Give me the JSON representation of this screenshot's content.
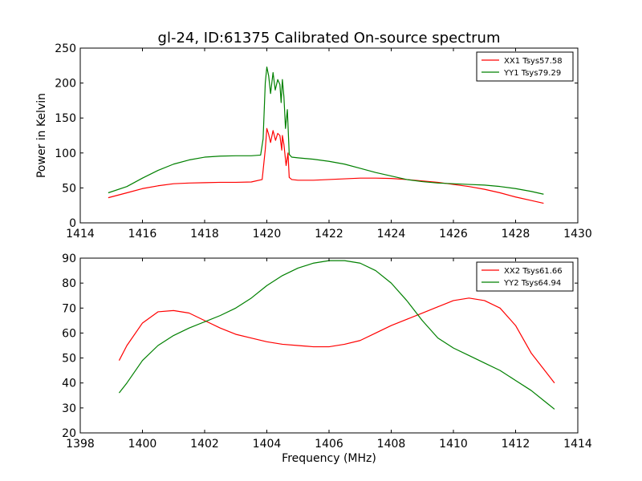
{
  "title": "gl-24, ID:61375 Calibrated On-source spectrum",
  "chart_data": [
    {
      "type": "line",
      "ylabel": "Power in Kelvin",
      "xlabel": "",
      "xlim": [
        1414,
        1430
      ],
      "ylim": [
        0,
        250
      ],
      "xticks": [
        "1414",
        "1416",
        "1418",
        "1420",
        "1422",
        "1424",
        "1426",
        "1428",
        "1430"
      ],
      "yticks": [
        "0",
        "50",
        "100",
        "150",
        "200",
        "250"
      ],
      "legend_position": "top-right",
      "series": [
        {
          "name": "XX1 Tsys57.58",
          "color": "#ff0000",
          "points": [
            [
              1414.9,
              36
            ],
            [
              1415.5,
              43
            ],
            [
              1416.0,
              49
            ],
            [
              1416.5,
              53
            ],
            [
              1417.0,
              56
            ],
            [
              1417.5,
              57
            ],
            [
              1418.0,
              57.5
            ],
            [
              1418.5,
              58
            ],
            [
              1419.0,
              58
            ],
            [
              1419.5,
              58.5
            ],
            [
              1419.85,
              62
            ],
            [
              1419.95,
              105
            ],
            [
              1420.0,
              135
            ],
            [
              1420.05,
              128
            ],
            [
              1420.12,
              115
            ],
            [
              1420.2,
              132
            ],
            [
              1420.28,
              118
            ],
            [
              1420.35,
              128
            ],
            [
              1420.42,
              125
            ],
            [
              1420.48,
              104
            ],
            [
              1420.5,
              125
            ],
            [
              1420.55,
              112
            ],
            [
              1420.62,
              82
            ],
            [
              1420.68,
              100
            ],
            [
              1420.72,
              65
            ],
            [
              1420.8,
              62
            ],
            [
              1421.0,
              61
            ],
            [
              1421.5,
              61
            ],
            [
              1422.0,
              62
            ],
            [
              1422.5,
              63
            ],
            [
              1423.0,
              64
            ],
            [
              1423.5,
              64
            ],
            [
              1424.0,
              63.5
            ],
            [
              1424.5,
              62
            ],
            [
              1425.0,
              60
            ],
            [
              1425.5,
              58
            ],
            [
              1426.0,
              55
            ],
            [
              1426.5,
              52
            ],
            [
              1427.0,
              48
            ],
            [
              1427.5,
              43
            ],
            [
              1428.0,
              37
            ],
            [
              1428.5,
              32
            ],
            [
              1428.9,
              28
            ]
          ]
        },
        {
          "name": "YY1 Tsys79.29",
          "color": "#008000",
          "points": [
            [
              1414.9,
              43
            ],
            [
              1415.5,
              52
            ],
            [
              1416.0,
              64
            ],
            [
              1416.5,
              75
            ],
            [
              1417.0,
              84
            ],
            [
              1417.5,
              90
            ],
            [
              1418.0,
              94
            ],
            [
              1418.5,
              95.5
            ],
            [
              1419.0,
              96
            ],
            [
              1419.5,
              96
            ],
            [
              1419.8,
              97
            ],
            [
              1419.88,
              120
            ],
            [
              1419.95,
              200
            ],
            [
              1420.0,
              223
            ],
            [
              1420.06,
              210
            ],
            [
              1420.12,
              185
            ],
            [
              1420.2,
              215
            ],
            [
              1420.27,
              190
            ],
            [
              1420.35,
              205
            ],
            [
              1420.42,
              198
            ],
            [
              1420.46,
              172
            ],
            [
              1420.5,
              205
            ],
            [
              1420.55,
              180
            ],
            [
              1420.6,
              135
            ],
            [
              1420.66,
              162
            ],
            [
              1420.72,
              98
            ],
            [
              1420.8,
              94
            ],
            [
              1421.0,
              93
            ],
            [
              1421.5,
              91
            ],
            [
              1422.0,
              88
            ],
            [
              1422.5,
              84
            ],
            [
              1423.0,
              78
            ],
            [
              1423.5,
              72
            ],
            [
              1424.0,
              67
            ],
            [
              1424.5,
              62
            ],
            [
              1425.0,
              59
            ],
            [
              1425.5,
              57
            ],
            [
              1426.0,
              56
            ],
            [
              1426.5,
              55
            ],
            [
              1427.0,
              54
            ],
            [
              1427.5,
              52
            ],
            [
              1428.0,
              49
            ],
            [
              1428.5,
              45
            ],
            [
              1428.9,
              41
            ]
          ]
        }
      ]
    },
    {
      "type": "line",
      "ylabel": "",
      "xlabel": "Frequency (MHz)",
      "xlim": [
        1398,
        1414
      ],
      "ylim": [
        20,
        90
      ],
      "xticks": [
        "1398",
        "1400",
        "1402",
        "1404",
        "1406",
        "1408",
        "1410",
        "1412",
        "1414"
      ],
      "yticks": [
        "20",
        "30",
        "40",
        "50",
        "60",
        "70",
        "80",
        "90"
      ],
      "legend_position": "top-right",
      "series": [
        {
          "name": "XX2 Tsys61.66",
          "color": "#ff0000",
          "points": [
            [
              1399.25,
              49
            ],
            [
              1399.5,
              55
            ],
            [
              1400.0,
              64
            ],
            [
              1400.5,
              68.5
            ],
            [
              1401.0,
              69
            ],
            [
              1401.5,
              68
            ],
            [
              1402.0,
              65
            ],
            [
              1402.5,
              62
            ],
            [
              1403.0,
              59.5
            ],
            [
              1403.5,
              58
            ],
            [
              1404.0,
              56.5
            ],
            [
              1404.5,
              55.5
            ],
            [
              1405.0,
              55
            ],
            [
              1405.5,
              54.5
            ],
            [
              1406.0,
              54.5
            ],
            [
              1406.5,
              55.5
            ],
            [
              1407.0,
              57
            ],
            [
              1407.5,
              60
            ],
            [
              1408.0,
              63
            ],
            [
              1408.5,
              65.5
            ],
            [
              1409.0,
              68
            ],
            [
              1409.5,
              70.5
            ],
            [
              1410.0,
              73
            ],
            [
              1410.5,
              74
            ],
            [
              1411.0,
              73
            ],
            [
              1411.5,
              70
            ],
            [
              1412.0,
              63
            ],
            [
              1412.5,
              52
            ],
            [
              1413.0,
              44
            ],
            [
              1413.25,
              40
            ]
          ]
        },
        {
          "name": "YY2 Tsys64.94",
          "color": "#008000",
          "points": [
            [
              1399.25,
              36
            ],
            [
              1399.5,
              40
            ],
            [
              1400.0,
              49
            ],
            [
              1400.5,
              55
            ],
            [
              1401.0,
              59
            ],
            [
              1401.5,
              62
            ],
            [
              1402.0,
              64.5
            ],
            [
              1402.5,
              67
            ],
            [
              1403.0,
              70
            ],
            [
              1403.5,
              74
            ],
            [
              1404.0,
              79
            ],
            [
              1404.5,
              83
            ],
            [
              1405.0,
              86
            ],
            [
              1405.5,
              88
            ],
            [
              1406.0,
              89
            ],
            [
              1406.5,
              89
            ],
            [
              1407.0,
              88
            ],
            [
              1407.5,
              85
            ],
            [
              1408.0,
              80
            ],
            [
              1408.5,
              73
            ],
            [
              1409.0,
              65
            ],
            [
              1409.5,
              58
            ],
            [
              1410.0,
              54
            ],
            [
              1410.5,
              51
            ],
            [
              1411.0,
              48
            ],
            [
              1411.5,
              45
            ],
            [
              1412.0,
              41
            ],
            [
              1412.5,
              37
            ],
            [
              1413.0,
              32
            ],
            [
              1413.25,
              29.5
            ]
          ]
        }
      ]
    }
  ]
}
